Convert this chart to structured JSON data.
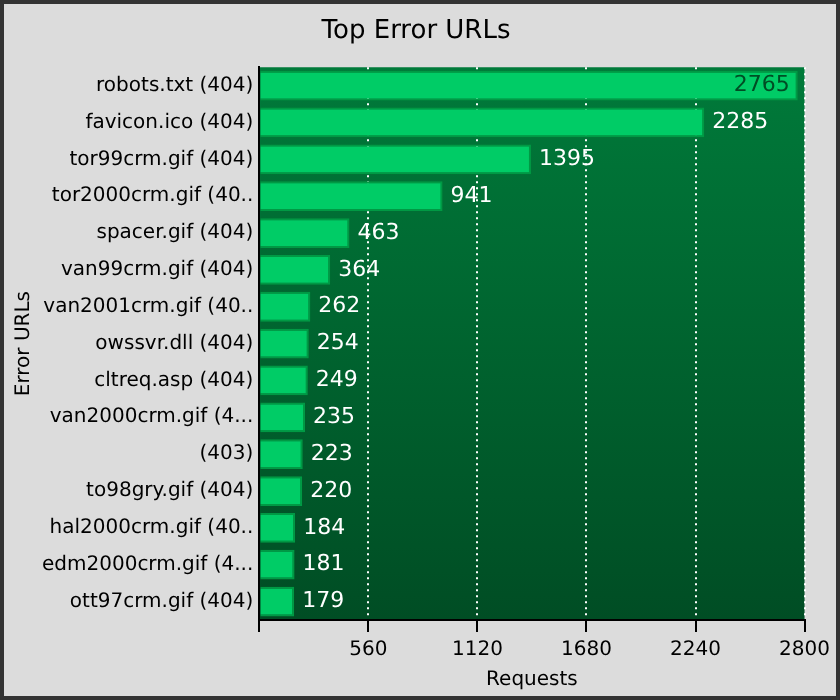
{
  "chart_data": {
    "type": "bar",
    "orientation": "horizontal",
    "title": "Top Error URLs",
    "xlabel": "Requests",
    "ylabel": "Error URLs",
    "categories": [
      "robots.txt (404)",
      "favicon.ico (404)",
      "tor99crm.gif (404)",
      "tor2000crm.gif (40..",
      "spacer.gif (404)",
      "van99crm.gif (404)",
      "van2001crm.gif (40..",
      "owssvr.dll (404)",
      "cltreq.asp (404)",
      "van2000crm.gif (4...",
      "(403)",
      "to98gry.gif (404)",
      "hal2000crm.gif (40..",
      "edm2000crm.gif (4...",
      "ott97crm.gif (404)"
    ],
    "values": [
      2765,
      2285,
      1395,
      941,
      463,
      364,
      262,
      254,
      249,
      235,
      223,
      220,
      184,
      181,
      179
    ],
    "color": "#00cc66",
    "xlim": [
      0,
      2800
    ],
    "xticks": [
      {
        "value": 0,
        "label": null
      },
      560,
      1120,
      1680,
      2240,
      2800
    ],
    "grid": "x",
    "legend": false,
    "data_labels": true
  }
}
